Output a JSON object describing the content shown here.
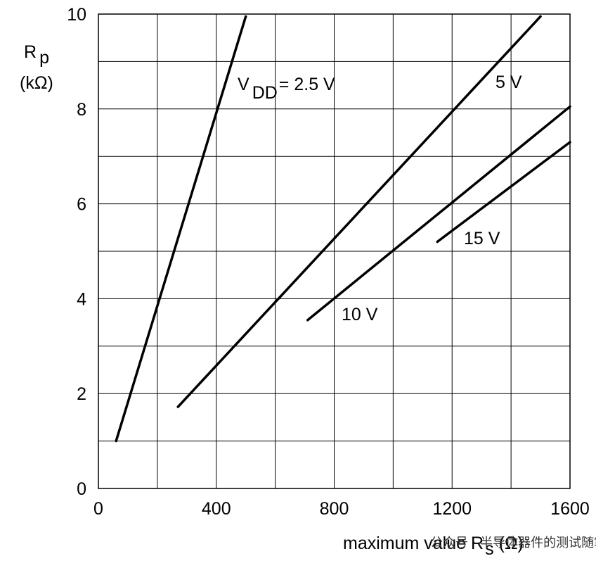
{
  "chart_data": {
    "type": "line",
    "xlabel": "maximum value R",
    "xlabel_subscript": "s",
    "xlabel_unit": " (Ω)",
    "ylabel_main": "R",
    "ylabel_subscript": "p",
    "ylabel_unit": "(kΩ)",
    "xlim": [
      0,
      1600
    ],
    "ylim": [
      0,
      10
    ],
    "x_ticks": [
      0,
      400,
      800,
      1200,
      1600
    ],
    "y_ticks": [
      0,
      2,
      4,
      6,
      8,
      10
    ],
    "grid": true,
    "x_minor_grid": 200,
    "y_minor_grid": 1,
    "series": [
      {
        "name": "V",
        "name_subscript": "DD",
        "name_suffix": "= 2.5 V",
        "x": [
          60,
          500
        ],
        "y": [
          1.0,
          9.95
        ]
      },
      {
        "name": "5 V",
        "x": [
          270,
          1500
        ],
        "y": [
          1.72,
          9.95
        ]
      },
      {
        "name": "10 V",
        "x": [
          710,
          1600
        ],
        "y": [
          3.55,
          8.05
        ]
      },
      {
        "name": "15 V",
        "x": [
          1150,
          1600
        ],
        "y": [
          5.2,
          7.3
        ]
      }
    ]
  },
  "watermark": "公众号 · 半导体器件的测试随笔"
}
